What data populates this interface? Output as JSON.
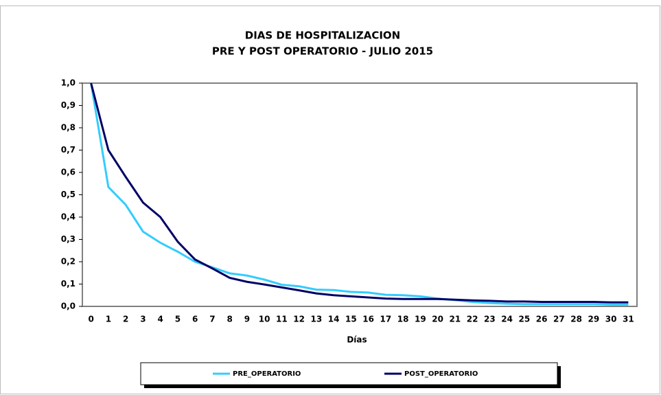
{
  "chart_data": {
    "type": "line",
    "title": "DIAS DE HOSPITALIZACION",
    "subtitle": "PRE Y POST OPERATORIO  -  JULIO 2015",
    "x_label": "Días",
    "categories": [
      "0",
      "1",
      "2",
      "3",
      "4",
      "5",
      "6",
      "7",
      "8",
      "9",
      "10",
      "11",
      "12",
      "13",
      "14",
      "15",
      "16",
      "17",
      "18",
      "19",
      "20",
      "21",
      "22",
      "23",
      "24",
      "25",
      "26",
      "27",
      "28",
      "29",
      "30",
      "31"
    ],
    "series": [
      {
        "name": "PRE_OPERATORIO",
        "color": "#33ccff",
        "values": [
          1.0,
          0.535,
          0.455,
          0.335,
          0.285,
          0.245,
          0.2,
          0.175,
          0.148,
          0.138,
          0.12,
          0.097,
          0.09,
          0.075,
          0.073,
          0.065,
          0.062,
          0.052,
          0.05,
          0.045,
          0.035,
          0.028,
          0.02,
          0.015,
          0.012,
          0.01,
          0.01,
          0.01,
          0.01,
          0.01,
          0.008,
          0.008
        ]
      },
      {
        "name": "POST_OPERATORIO",
        "color": "#000066",
        "values": [
          1.0,
          0.7,
          0.58,
          0.465,
          0.4,
          0.29,
          0.21,
          0.17,
          0.128,
          0.11,
          0.098,
          0.085,
          0.072,
          0.058,
          0.05,
          0.045,
          0.04,
          0.035,
          0.033,
          0.033,
          0.033,
          0.03,
          0.027,
          0.025,
          0.022,
          0.022,
          0.02,
          0.02,
          0.02,
          0.02,
          0.018,
          0.018
        ]
      }
    ],
    "ylim": [
      0,
      1
    ],
    "yticks": [
      {
        "value": 0,
        "label": "0,0"
      },
      {
        "value": 0.1,
        "label": "0,1"
      },
      {
        "value": 0.2,
        "label": "0,2"
      },
      {
        "value": 0.3,
        "label": "0,3"
      },
      {
        "value": 0.4,
        "label": "0,4"
      },
      {
        "value": 0.5,
        "label": "0,5"
      },
      {
        "value": 0.6,
        "label": "0,6"
      },
      {
        "value": 0.7,
        "label": "0,7"
      },
      {
        "value": 0.8,
        "label": "0,8"
      },
      {
        "value": 0.9,
        "label": "0,9"
      },
      {
        "value": 1,
        "label": "1,0"
      }
    ],
    "legend": "bottom"
  }
}
